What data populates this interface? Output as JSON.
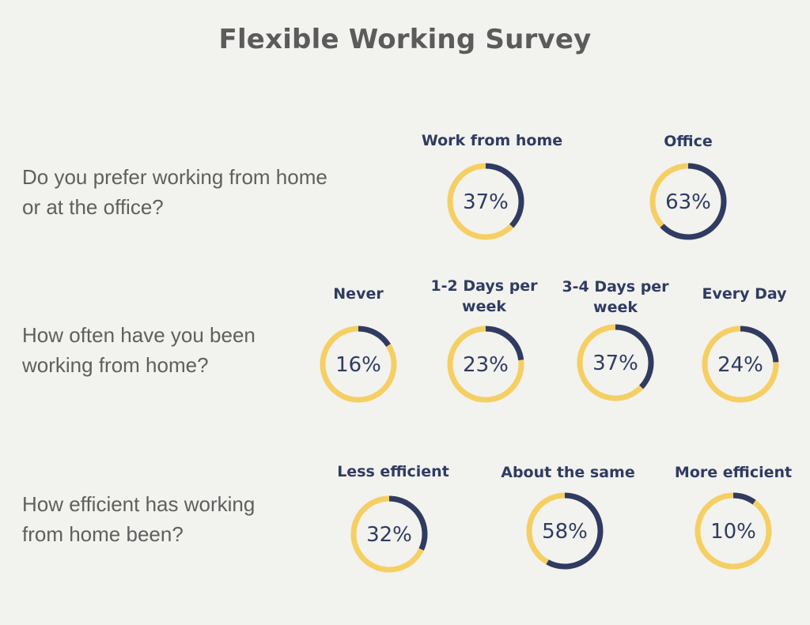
{
  "colors": {
    "accent": "#f5cf63",
    "primary": "#2f3b62",
    "background": "#f2f2ee"
  },
  "chart_data": {
    "type": "pie",
    "title": "Flexible Working Survey",
    "groups": [
      {
        "question": "Do you prefer working from home or at the office?",
        "items": [
          {
            "label": "Work from home",
            "value": 37,
            "display": "37%"
          },
          {
            "label": "Office",
            "value": 63,
            "display": "63%"
          }
        ]
      },
      {
        "question": "How often have you been working from home?",
        "items": [
          {
            "label": "Never",
            "value": 16,
            "display": "16%"
          },
          {
            "label": "1-2 Days per week",
            "value": 23,
            "display": "23%"
          },
          {
            "label": "3-4 Days per week",
            "value": 37,
            "display": "37%"
          },
          {
            "label": "Every Day",
            "value": 24,
            "display": "24%"
          }
        ]
      },
      {
        "question": "How efficient has working from home been?",
        "items": [
          {
            "label": "Less efficient",
            "value": 32,
            "display": "32%"
          },
          {
            "label": "About the same",
            "value": 58,
            "display": "58%"
          },
          {
            "label": "More efficient",
            "value": 10,
            "display": "10%"
          }
        ]
      }
    ]
  }
}
